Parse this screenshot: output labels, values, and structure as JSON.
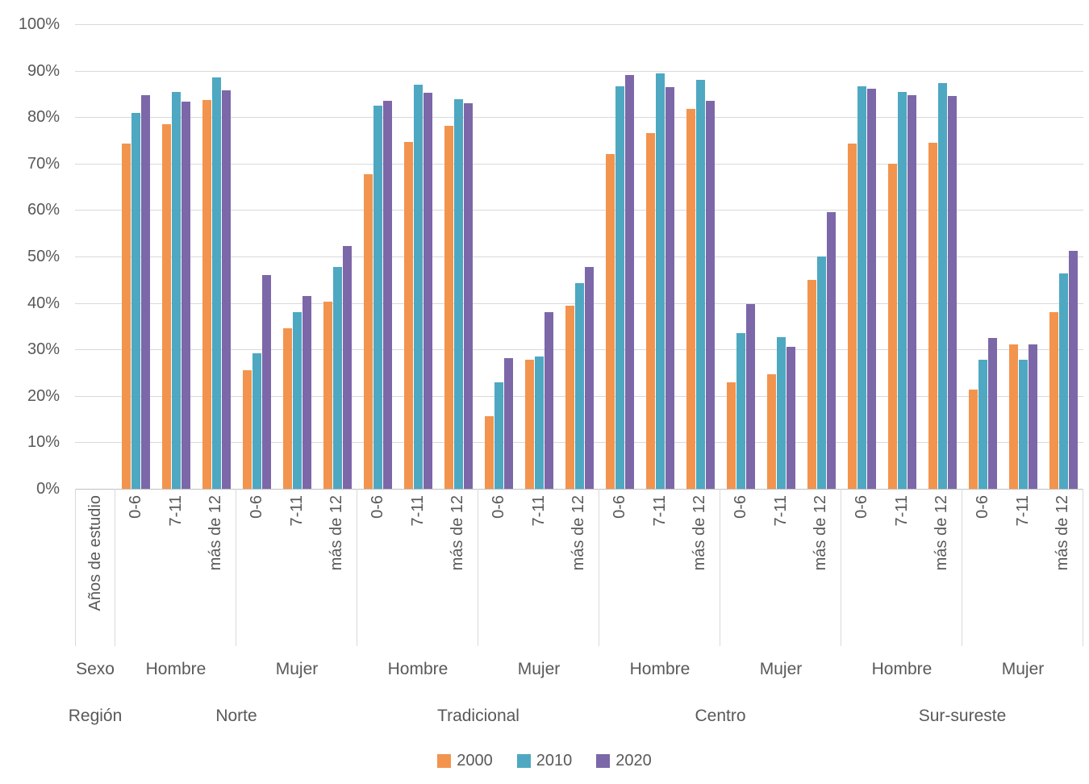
{
  "chart_data": {
    "type": "bar",
    "title": "",
    "y_axis": {
      "min": 0,
      "max": 100,
      "tick_step": 10,
      "tick_labels": [
        "100%",
        "90%",
        "80%",
        "70%",
        "60%",
        "50%",
        "40%",
        "30%",
        "20%",
        "10%",
        "0%"
      ],
      "grid": true
    },
    "axis_titles": {
      "education": "Años de estudio",
      "sex": "Sexo",
      "region": "Región"
    },
    "education_levels": [
      "0-6",
      "7-11",
      "más de 12"
    ],
    "series": [
      {
        "name": "2000",
        "color": "#F2944E"
      },
      {
        "name": "2010",
        "color": "#4EA8C1"
      },
      {
        "name": "2020",
        "color": "#7C68A8"
      }
    ],
    "regions": [
      "Norte",
      "Tradicional",
      "Centro",
      "Sur-sureste"
    ],
    "groups": [
      {
        "region": "Norte",
        "sex": "Hombre",
        "clusters": [
          [
            74.3,
            80.9,
            84.7
          ],
          [
            78.4,
            85.4,
            83.3
          ],
          [
            83.7,
            88.6,
            85.7
          ]
        ]
      },
      {
        "region": "Norte",
        "sex": "Mujer",
        "clusters": [
          [
            25.6,
            29.2,
            46.0
          ],
          [
            34.6,
            38.1,
            41.5
          ],
          [
            40.2,
            47.8,
            52.3
          ]
        ]
      },
      {
        "region": "Tradicional",
        "sex": "Hombre",
        "clusters": [
          [
            67.7,
            82.5,
            83.5
          ],
          [
            74.7,
            87.0,
            85.3
          ],
          [
            78.1,
            83.9,
            83.0
          ]
        ]
      },
      {
        "region": "Tradicional",
        "sex": "Mujer",
        "clusters": [
          [
            15.6,
            22.9,
            28.1
          ],
          [
            27.8,
            28.5,
            38.1
          ],
          [
            39.4,
            44.3,
            47.8
          ]
        ]
      },
      {
        "region": "Centro",
        "sex": "Hombre",
        "clusters": [
          [
            72.1,
            86.6,
            89.0
          ],
          [
            76.6,
            89.5,
            86.4
          ],
          [
            81.8,
            88.0,
            83.5
          ]
        ]
      },
      {
        "region": "Centro",
        "sex": "Mujer",
        "clusters": [
          [
            22.9,
            33.6,
            39.8
          ],
          [
            24.7,
            32.6,
            30.6
          ],
          [
            45.0,
            50.0,
            59.5
          ]
        ]
      },
      {
        "region": "Sur-sureste",
        "sex": "Hombre",
        "clusters": [
          [
            74.3,
            86.6,
            86.2
          ],
          [
            70.0,
            85.4,
            84.8
          ],
          [
            74.5,
            87.4,
            84.5
          ]
        ]
      },
      {
        "region": "Sur-sureste",
        "sex": "Mujer",
        "clusters": [
          [
            21.4,
            27.7,
            32.5
          ],
          [
            31.1,
            27.7,
            31.0
          ],
          [
            38.0,
            46.4,
            51.2
          ]
        ]
      }
    ],
    "legend": {
      "position": "bottom",
      "labels": [
        "2000",
        "2010",
        "2020"
      ]
    },
    "colors": {
      "grid": "#D9D9D9",
      "axis_line": "#BFBFBF",
      "text": "#595959"
    }
  }
}
